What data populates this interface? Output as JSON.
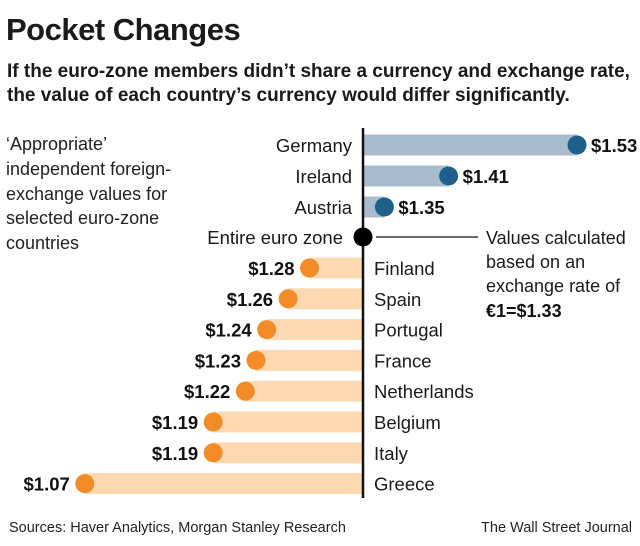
{
  "title": "Pocket Changes",
  "subtitle": "If the euro-zone members didn’t share a currency and exchange rate, the value of each country’s currency would differ significantly.",
  "side_note": "‘Appropriate’ independent foreign-exchange values for selected euro-zone countries",
  "note": {
    "lines": [
      "Values calculated",
      "based on an",
      "exchange rate of"
    ],
    "rate": "€1=$1.33"
  },
  "source": "Sources: Haver Analytics, Morgan Stanley Research",
  "publisher": "The Wall Street Journal",
  "colors": {
    "above_bar": "#a9bccd",
    "above_dot": "#1f5f8c",
    "below_bar": "#fcd9b1",
    "below_dot": "#f28c28",
    "axis": "#111111"
  },
  "chart_data": {
    "type": "bar",
    "orientation": "horizontal",
    "baseline": 1.33,
    "baseline_label": "Entire euro zone",
    "value_prefix": "$",
    "categories": [
      "Germany",
      "Ireland",
      "Austria",
      "Finland",
      "Spain",
      "Portugal",
      "France",
      "Netherlands",
      "Belgium",
      "Italy",
      "Greece"
    ],
    "values": [
      1.53,
      1.41,
      1.35,
      1.28,
      1.26,
      1.24,
      1.23,
      1.22,
      1.19,
      1.19,
      1.07
    ],
    "data_labels": [
      "$1.53",
      "$1.41",
      "$1.35",
      "$1.28",
      "$1.26",
      "$1.24",
      "$1.23",
      "$1.22",
      "$1.19",
      "$1.19",
      "$1.07"
    ],
    "grid": false
  }
}
